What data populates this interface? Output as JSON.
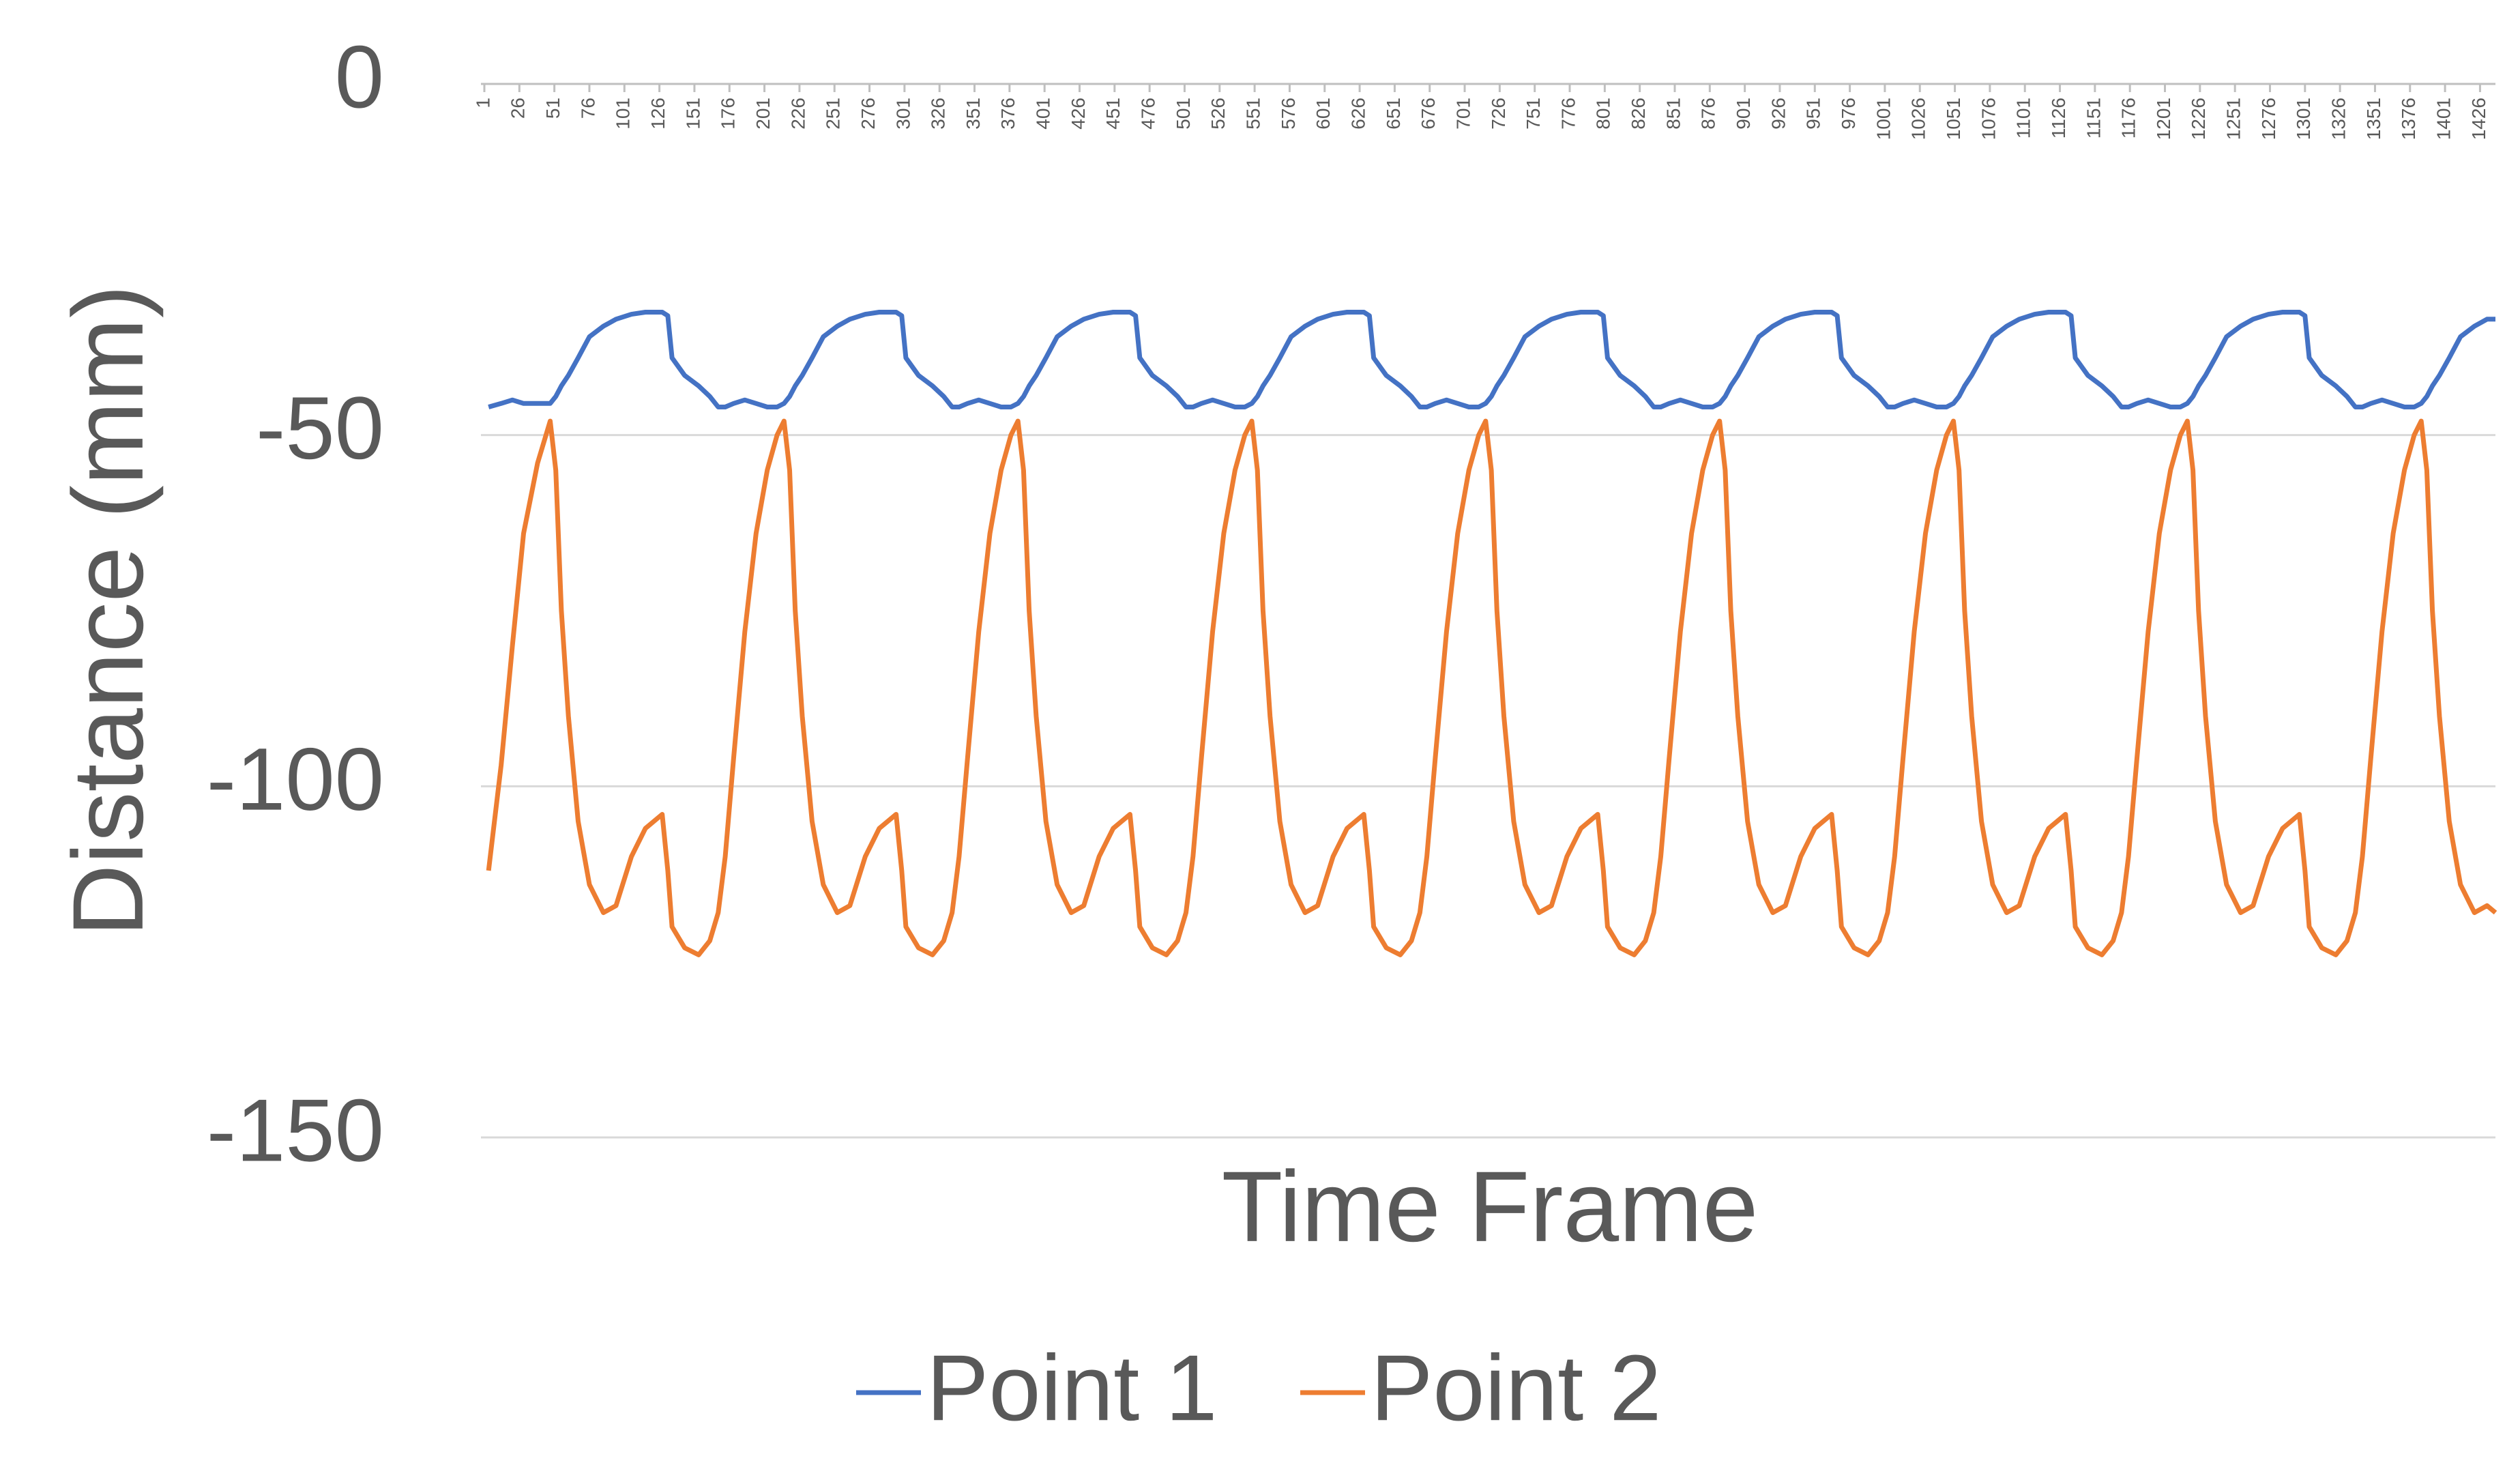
{
  "chart_data": {
    "type": "line",
    "x_label": "Time Frame",
    "y_label": "Distance (mm)",
    "xlim": [
      1,
      1437
    ],
    "xticks": [
      1,
      26,
      51,
      76,
      101,
      126,
      151,
      176,
      201,
      226,
      251,
      276,
      301,
      326,
      351,
      376,
      401,
      426,
      451,
      476,
      501,
      526,
      551,
      576,
      601,
      626,
      651,
      676,
      701,
      726,
      751,
      776,
      801,
      826,
      851,
      876,
      901,
      926,
      951,
      976,
      1001,
      1026,
      1051,
      1076,
      1101,
      1126,
      1151,
      1176,
      1201,
      1226,
      1251,
      1276,
      1301,
      1326,
      1351,
      1376,
      1401,
      1426
    ],
    "ylim": [
      -150,
      0
    ],
    "yticks": [
      -150,
      -100,
      -50,
      0
    ],
    "grid": true,
    "legend": "bottom",
    "x": [
      4,
      13,
      21,
      29,
      39,
      48,
      52,
      56,
      61,
      68,
      76,
      86,
      95,
      106,
      116,
      128,
      132,
      135,
      144,
      154,
      162,
      168,
      173,
      179,
      187,
      195,
      203,
      210,
      215,
      219,
      223,
      228,
      235,
      243,
      253,
      262,
      273,
      283,
      295,
      299,
      302,
      311,
      321,
      329,
      335,
      340,
      346,
      354,
      362,
      370,
      377,
      382,
      386,
      390,
      395,
      402,
      410,
      420,
      429,
      440,
      450,
      462,
      466,
      469,
      478,
      488,
      496,
      502,
      507,
      513,
      521,
      529,
      537,
      544,
      549,
      553,
      557,
      562,
      569,
      577,
      587,
      596,
      607,
      617,
      629,
      633,
      636,
      645,
      655,
      663,
      669,
      674,
      680,
      688,
      696,
      704,
      711,
      716,
      720,
      724,
      729,
      736,
      744,
      754,
      763,
      774,
      784,
      796,
      800,
      803,
      812,
      822,
      830,
      836,
      841,
      847,
      855,
      863,
      871,
      878,
      883,
      887,
      891,
      896,
      903,
      911,
      921,
      930,
      941,
      951,
      963,
      967,
      970,
      979,
      989,
      997,
      1003,
      1008,
      1014,
      1022,
      1030,
      1038,
      1045,
      1050,
      1054,
      1058,
      1063,
      1070,
      1078,
      1088,
      1097,
      1108,
      1118,
      1130,
      1134,
      1137,
      1146,
      1156,
      1164,
      1170,
      1175,
      1181,
      1189,
      1197,
      1205,
      1212,
      1217,
      1221,
      1225,
      1230,
      1237,
      1245,
      1255,
      1264,
      1275,
      1285,
      1297,
      1301,
      1304,
      1313,
      1323,
      1331,
      1337,
      1342,
      1348,
      1356,
      1364,
      1372,
      1379,
      1384,
      1388,
      1392,
      1397,
      1404,
      1412,
      1422,
      1431,
      1437
    ],
    "series": [
      {
        "name": "Point 1",
        "color": "#4472c4",
        "values": [
          -46,
          -45.5,
          -45,
          -45.5,
          -45.5,
          -45.5,
          -44.5,
          -43,
          -41.5,
          -39,
          -36,
          -34.5,
          -33.5,
          -32.8,
          -32.5,
          -32.5,
          -33,
          -39,
          -41.5,
          -43,
          -44.5,
          -46,
          -46,
          -45.5,
          -45,
          -45.5,
          -46,
          -46,
          -45.5,
          -44.5,
          -43,
          -41.5,
          -39,
          -36,
          -34.5,
          -33.5,
          -32.8,
          -32.5,
          -32.5,
          -33,
          -39,
          -41.5,
          -43,
          -44.5,
          -46,
          -46,
          -45.5,
          -45,
          -45.5,
          -46,
          -46,
          -45.5,
          -44.5,
          -43,
          -41.5,
          -39,
          -36,
          -34.5,
          -33.5,
          -32.8,
          -32.5,
          -32.5,
          -33,
          -39,
          -41.5,
          -43,
          -44.5,
          -46,
          -46,
          -45.5,
          -45,
          -45.5,
          -46,
          -46,
          -45.5,
          -44.5,
          -43,
          -41.5,
          -39,
          -36,
          -34.5,
          -33.5,
          -32.8,
          -32.5,
          -32.5,
          -33,
          -39,
          -41.5,
          -43,
          -44.5,
          -46,
          -46,
          -45.5,
          -45,
          -45.5,
          -46,
          -46,
          -45.5,
          -44.5,
          -43,
          -41.5,
          -39,
          -36,
          -34.5,
          -33.5,
          -32.8,
          -32.5,
          -32.5,
          -33,
          -39,
          -41.5,
          -43,
          -44.5,
          -46,
          -46,
          -45.5,
          -45,
          -45.5,
          -46,
          -46,
          -45.5,
          -44.5,
          -43,
          -41.5,
          -39,
          -36,
          -34.5,
          -33.5,
          -32.8,
          -32.5,
          -32.5,
          -33,
          -39,
          -41.5,
          -43,
          -44.5,
          -46,
          -46,
          -45.5,
          -45,
          -45.5,
          -46,
          -46,
          -45.5,
          -44.5,
          -43,
          -41.5,
          -39,
          -36,
          -34.5,
          -33.5,
          -32.8,
          -32.5,
          -32.5,
          -33,
          -39,
          -41.5,
          -43,
          -44.5,
          -46,
          -46,
          -45.5,
          -45,
          -45.5,
          -46,
          -46,
          -45.5,
          -44.5,
          -43,
          -41.5,
          -39,
          -36,
          -34.5,
          -33.5,
          -32.8,
          -32.5,
          -32.5,
          -33,
          -39,
          -41.5,
          -43,
          -44.5,
          -46,
          -46,
          -45.5,
          -45,
          -45.5,
          -46,
          -46,
          -45.5,
          -44.5,
          -43,
          -41.5,
          -39,
          -36,
          -34.5,
          -33.5,
          -33.5
        ]
      },
      {
        "name": "Point 2",
        "color": "#ed7d31",
        "values": [
          -112,
          -97,
          -80,
          -64,
          -54,
          -48,
          -55,
          -75,
          -90,
          -105,
          -114,
          -118,
          -117,
          -110,
          -106,
          -104,
          -112,
          -120,
          -123,
          -124,
          -122,
          -118,
          -110,
          -96,
          -78,
          -64,
          -55,
          -50,
          -48,
          -55,
          -75,
          -90,
          -105,
          -114,
          -118,
          -117,
          -110,
          -106,
          -104,
          -112,
          -120,
          -123,
          -124,
          -122,
          -118,
          -110,
          -96,
          -78,
          -64,
          -55,
          -50,
          -48,
          -55,
          -75,
          -90,
          -105,
          -114,
          -118,
          -117,
          -110,
          -106,
          -104,
          -112,
          -120,
          -123,
          -124,
          -122,
          -118,
          -110,
          -96,
          -78,
          -64,
          -55,
          -50,
          -48,
          -55,
          -75,
          -90,
          -105,
          -114,
          -118,
          -117,
          -110,
          -106,
          -104,
          -112,
          -120,
          -123,
          -124,
          -122,
          -118,
          -110,
          -96,
          -78,
          -64,
          -55,
          -50,
          -48,
          -55,
          -75,
          -90,
          -105,
          -114,
          -118,
          -117,
          -110,
          -106,
          -104,
          -112,
          -120,
          -123,
          -124,
          -122,
          -118,
          -110,
          -96,
          -78,
          -64,
          -55,
          -50,
          -48,
          -55,
          -75,
          -90,
          -105,
          -114,
          -118,
          -117,
          -110,
          -106,
          -104,
          -112,
          -120,
          -123,
          -124,
          -122,
          -118,
          -110,
          -96,
          -78,
          -64,
          -55,
          -50,
          -48,
          -55,
          -75,
          -90,
          -105,
          -114,
          -118,
          -117,
          -110,
          -106,
          -104,
          -112,
          -120,
          -123,
          -124,
          -122,
          -118,
          -110,
          -96,
          -78,
          -64,
          -55,
          -50,
          -48,
          -55,
          -75,
          -90,
          -105,
          -114,
          -118,
          -117,
          -110,
          -106,
          -104,
          -112,
          -120,
          -123,
          -124,
          -122,
          -118,
          -110,
          -96,
          -78,
          -64,
          -55,
          -50,
          -48,
          -55,
          -75,
          -90,
          -105,
          -114,
          -118,
          -117,
          -118
        ]
      }
    ]
  }
}
